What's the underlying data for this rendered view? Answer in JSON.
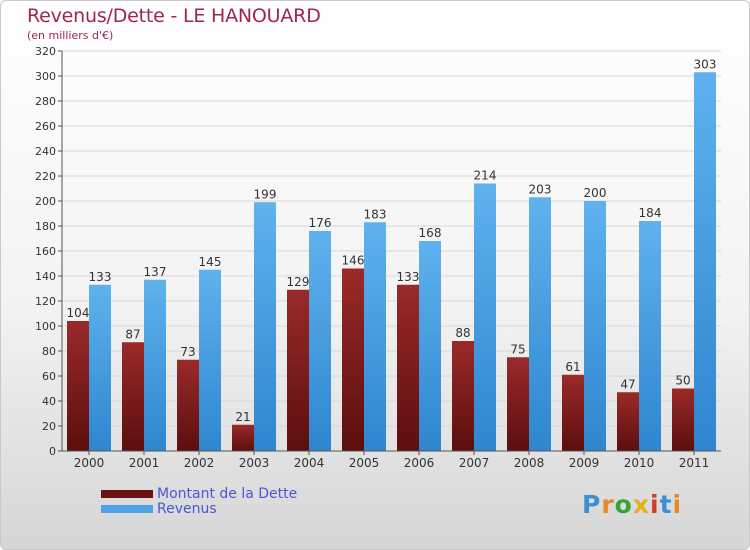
{
  "header": {
    "title": "Revenus/Dette - LE HANOUARD",
    "subtitle": "(en milliers d'€)"
  },
  "logo": {
    "text": "Proxiti",
    "letter_colors": [
      "#3a8fd6",
      "#e58a25",
      "#3aa23a",
      "#e2b21e",
      "#d23c2c",
      "#3a8fd6",
      "#e58a25"
    ]
  },
  "colors": {
    "dette": "#7a1818",
    "revenus": "#4ea3e6",
    "axis": "#555555",
    "grid": "#d7d7d7"
  },
  "chart_data": {
    "type": "bar",
    "categories": [
      "2000",
      "2001",
      "2002",
      "2003",
      "2004",
      "2005",
      "2006",
      "2007",
      "2008",
      "2009",
      "2010",
      "2011"
    ],
    "series": [
      {
        "name": "Montant de la Dette",
        "values": [
          104,
          87,
          73,
          21,
          129,
          146,
          133,
          88,
          75,
          61,
          47,
          50
        ]
      },
      {
        "name": "Revenus",
        "values": [
          133,
          137,
          145,
          199,
          176,
          183,
          168,
          214,
          203,
          200,
          184,
          303
        ]
      }
    ],
    "yticks": [
      0,
      20,
      40,
      60,
      80,
      100,
      120,
      140,
      160,
      180,
      200,
      220,
      240,
      260,
      280,
      300,
      320
    ],
    "ylim": [
      0,
      320
    ],
    "grid": true,
    "legend": "bottom-left"
  }
}
